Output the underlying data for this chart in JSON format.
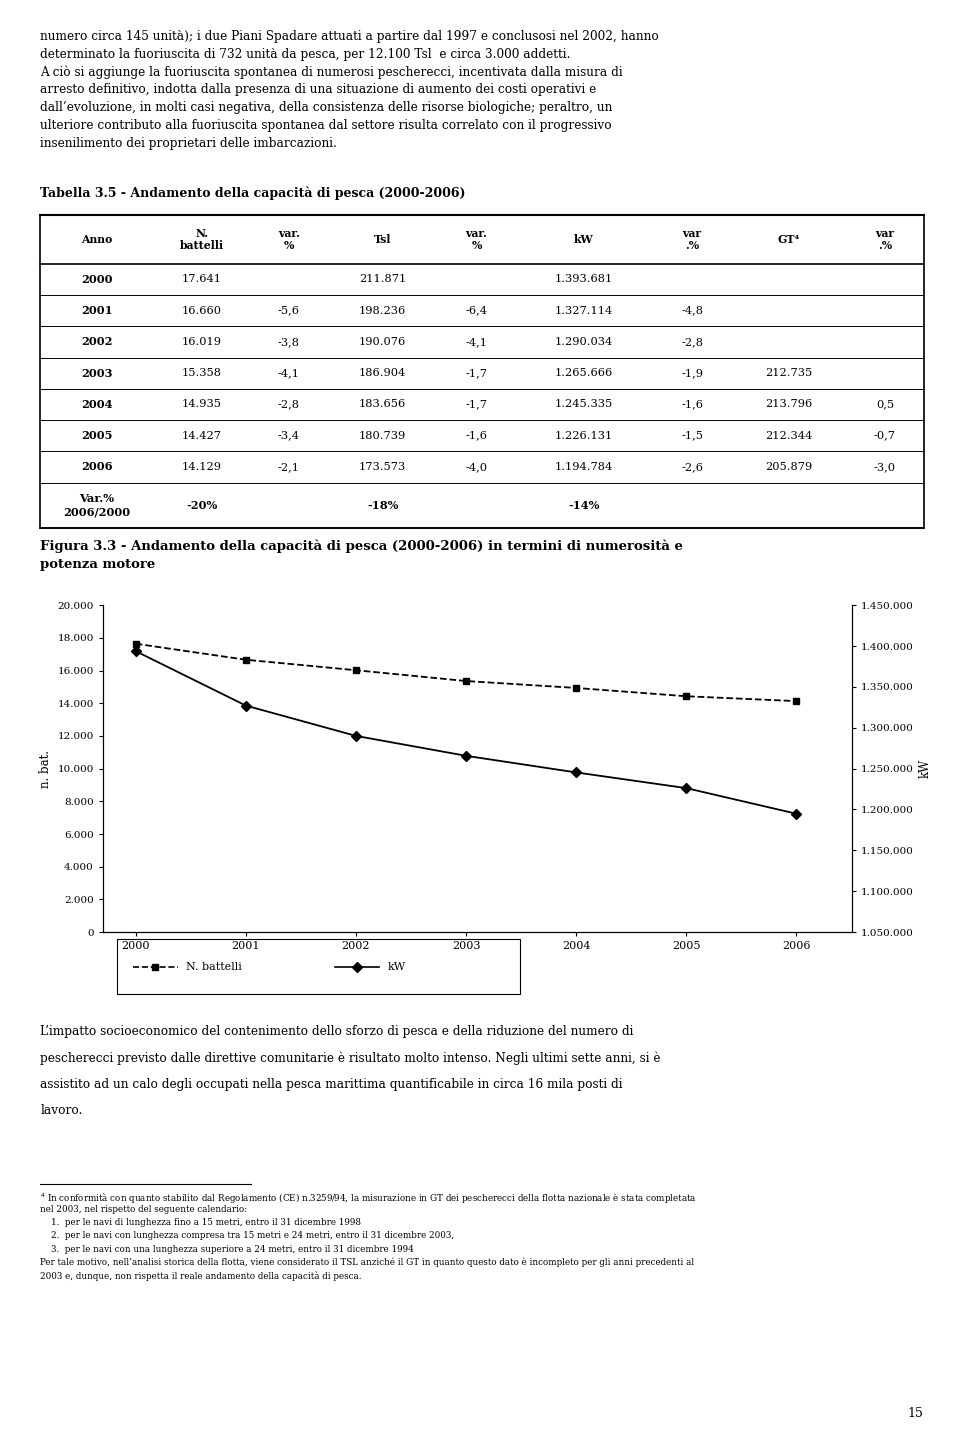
{
  "intro_text_line1": "numero circa 145 unità); i due Piani Spadare attuati a partire dal 1997 e conclusosi nel 2002, hanno",
  "intro_text_line2": "determinato la fuoriuscita di 732 unità da pesca, per 12.100 Tsl  e circa 3.000 addetti.",
  "intro_text_line3": "A ciò si aggiunge la fuoriuscita spontanea di numerosi pescherecci, incentivata dalla misura di",
  "intro_text_line4": "arresto definitivo, indotta dalla presenza di una situazione di aumento dei costi operativi e",
  "intro_text_line5": "dall’evoluzione, in molti casi negativa, della consistenza delle risorse biologiche; peraltro, un",
  "intro_text_line6": "ulteriore contributo alla fuoriuscita spontanea dal settore risulta correlato con il progressivo",
  "intro_text_line7": "insenilimento dei proprietari delle imbarcazioni.",
  "table_title": "Tabella 3.5 - Andamento della capacità di pesca (2000-2006)",
  "table_headers": [
    "Anno",
    "N.\nbattelli",
    "var.\n%",
    "Tsl",
    "var.\n%",
    "kW",
    "var\n.%",
    "GT⁴",
    "var\n.%"
  ],
  "table_rows": [
    [
      "2000",
      "17.641",
      "",
      "211.871",
      "",
      "1.393.681",
      "",
      "",
      ""
    ],
    [
      "2001",
      "16.660",
      "-5,6",
      "198.236",
      "-6,4",
      "1.327.114",
      "-4,8",
      "",
      ""
    ],
    [
      "2002",
      "16.019",
      "-3,8",
      "190.076",
      "-4,1",
      "1.290.034",
      "-2,8",
      "",
      ""
    ],
    [
      "2003",
      "15.358",
      "-4,1",
      "186.904",
      "-1,7",
      "1.265.666",
      "-1,9",
      "212.735",
      ""
    ],
    [
      "2004",
      "14.935",
      "-2,8",
      "183.656",
      "-1,7",
      "1.245.335",
      "-1,6",
      "213.796",
      "0,5"
    ],
    [
      "2005",
      "14.427",
      "-3,4",
      "180.739",
      "-1,6",
      "1.226.131",
      "-1,5",
      "212.344",
      "-0,7"
    ],
    [
      "2006",
      "14.129",
      "-2,1",
      "173.573",
      "-4,0",
      "1.194.784",
      "-2,6",
      "205.879",
      "-3,0"
    ],
    [
      "Var.%\n2006/2000",
      "-20%",
      "",
      "-18%",
      "",
      "-14%",
      "",
      "",
      ""
    ]
  ],
  "fig_title_line1": "Figura 3.3 - Andamento della capacità di pesca (2000-2006) in termini di numerosità e",
  "fig_title_line2": "potenza motore",
  "years": [
    2000,
    2001,
    2002,
    2003,
    2004,
    2005,
    2006
  ],
  "battelli": [
    17641,
    16660,
    16019,
    15358,
    14935,
    14427,
    14129
  ],
  "kw": [
    1393681,
    1327114,
    1290034,
    1265666,
    1245335,
    1226131,
    1194784
  ],
  "ylabel_left": "n. bat.",
  "ylabel_right": "kW",
  "ylim_left": [
    0,
    20000
  ],
  "ylim_right": [
    1050000,
    1450000
  ],
  "yticks_left": [
    0,
    2000,
    4000,
    6000,
    8000,
    10000,
    12000,
    14000,
    16000,
    18000,
    20000
  ],
  "yticks_right": [
    1050000,
    1100000,
    1150000,
    1200000,
    1250000,
    1300000,
    1350000,
    1400000,
    1450000
  ],
  "legend_battelli": "N. battelli",
  "legend_kw": "kW",
  "bottom_text_line1": "L’impatto socioeconomico del contenimento dello sforzo di pesca e della riduzione del numero di",
  "bottom_text_line2": "pescherecci previsto dalle direttive comunitarie è risultato molto intenso. Negli ultimi sette anni, si è",
  "bottom_text_line3": "assistito ad un calo degli occupati nella pesca marittima quantificabile in circa 16 mila posti di",
  "bottom_text_line4": "lavoro.",
  "footnote_sup": "4",
  "footnote_line1": " In conformità con quanto stabilito dal Regolamento (CE) n.3259/94, la misurazione in GT dei pescherecci della flotta nazionale è stata completata",
  "footnote_line2": "nel 2003, nel rispetto del seguente calendario:",
  "footnote_item1": "per le navi di lunghezza fino a 15 metri, entro il 31 dicembre 1998",
  "footnote_item2": "per le navi con lunghezza compresa tra 15 metri e 24 metri, entro il 31 dicembre 2003,",
  "footnote_item3": "per le navi con una lunghezza superiore a 24 metri, entro il 31 dicembre 1994",
  "footnote_line5": "Per tale motivo, nell’analisi storica della flotta, viene considerato il TSL anziché il GT in quanto questo dato è incompleto per gli anni precedenti al",
  "footnote_line6": "2003 e, dunque, non rispetta il reale andamento della capacità di pesca.",
  "page_number": "15",
  "bg_color": "#ffffff"
}
